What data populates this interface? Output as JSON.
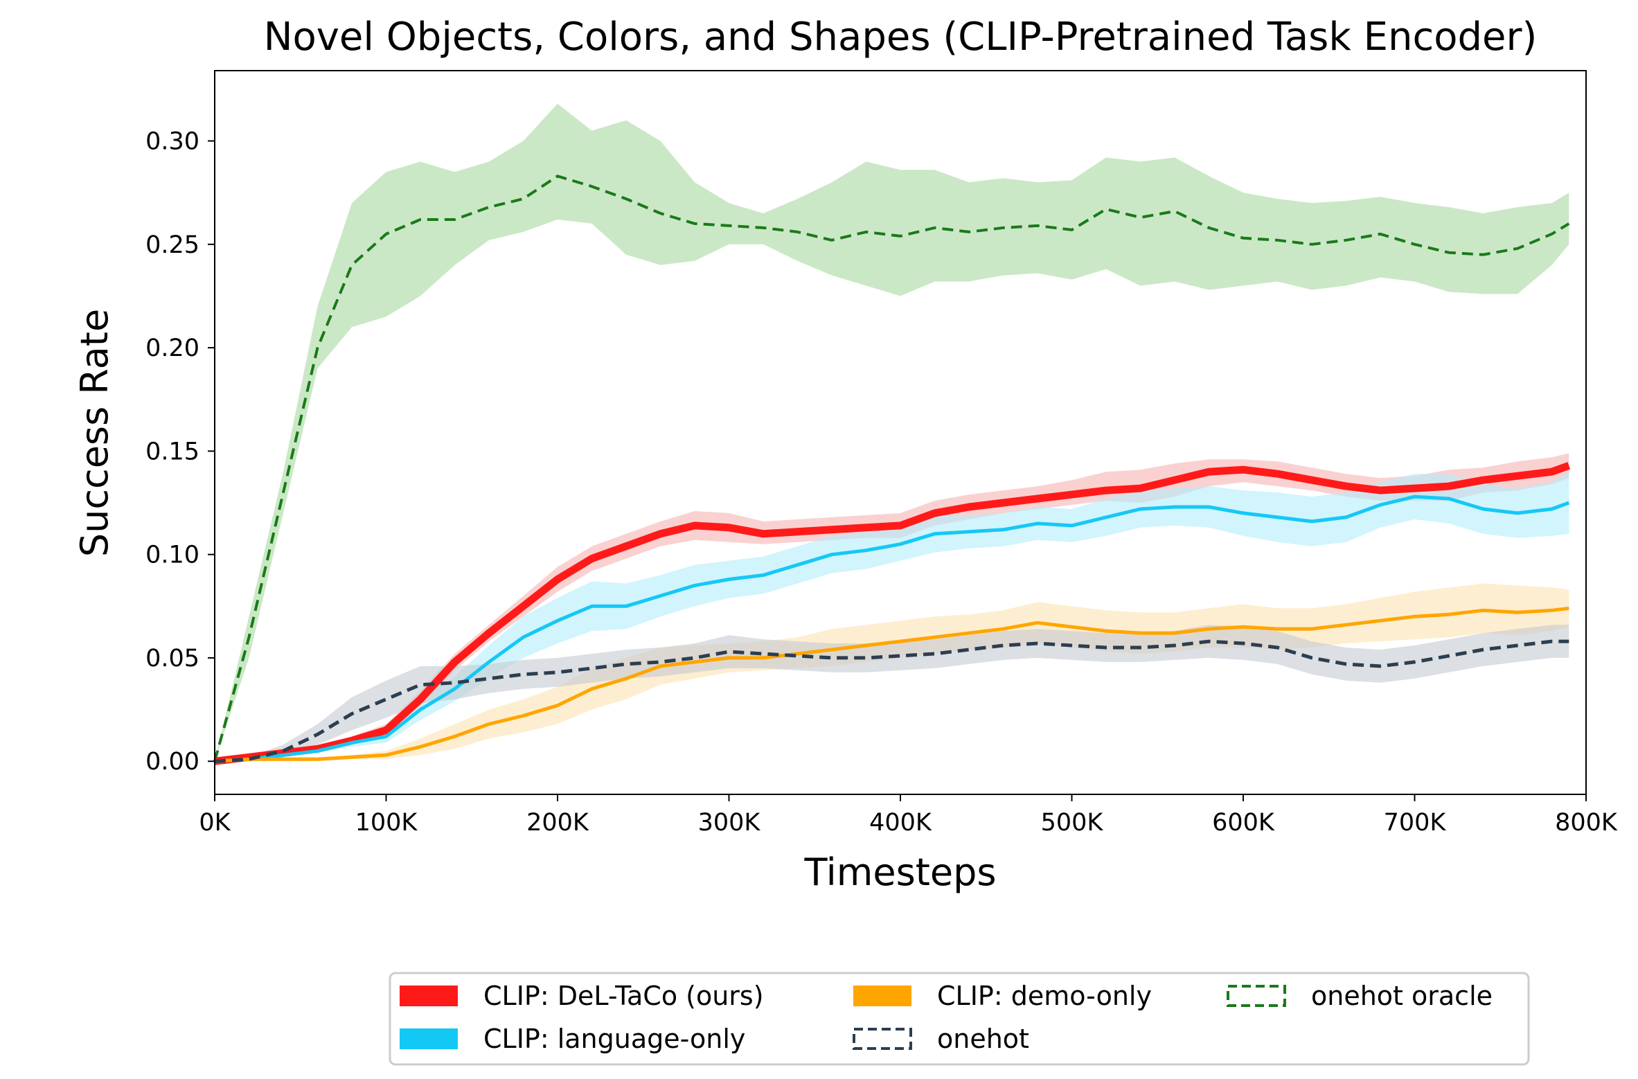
{
  "chart_data": {
    "type": "line",
    "title": "Novel Objects, Colors, and Shapes (CLIP-Pretrained Task Encoder)",
    "xlabel": "Timesteps",
    "ylabel": "Success Rate",
    "xlim": [
      0,
      800000
    ],
    "ylim": [
      -0.016,
      0.334
    ],
    "xticks": [
      0,
      100000,
      200000,
      300000,
      400000,
      500000,
      600000,
      700000,
      800000
    ],
    "xtick_labels": [
      "0K",
      "100K",
      "200K",
      "300K",
      "400K",
      "500K",
      "600K",
      "700K",
      "800K"
    ],
    "yticks": [
      0.0,
      0.05,
      0.1,
      0.15,
      0.2,
      0.25,
      0.3
    ],
    "ytick_labels": [
      "0.00",
      "0.05",
      "0.10",
      "0.15",
      "0.20",
      "0.25",
      "0.30"
    ],
    "grid": false,
    "legend_position": "bottom, below plot",
    "x": [
      0,
      20000,
      40000,
      60000,
      80000,
      100000,
      120000,
      140000,
      160000,
      180000,
      200000,
      220000,
      240000,
      260000,
      280000,
      300000,
      320000,
      340000,
      360000,
      380000,
      400000,
      420000,
      440000,
      460000,
      480000,
      500000,
      520000,
      540000,
      560000,
      580000,
      600000,
      620000,
      640000,
      660000,
      680000,
      700000,
      720000,
      740000,
      760000,
      780000,
      790000
    ],
    "series": [
      {
        "name": "onehot oracle",
        "color": "#1a7a1a",
        "band_color": "#a8d8a0",
        "line_style": "dashed",
        "line_width": 4,
        "values": [
          0.0,
          0.06,
          0.13,
          0.2,
          0.24,
          0.255,
          0.262,
          0.262,
          0.268,
          0.272,
          0.283,
          0.278,
          0.272,
          0.265,
          0.26,
          0.259,
          0.258,
          0.256,
          0.252,
          0.256,
          0.254,
          0.258,
          0.256,
          0.258,
          0.259,
          0.257,
          0.267,
          0.263,
          0.266,
          0.258,
          0.253,
          0.252,
          0.25,
          0.252,
          0.255,
          0.25,
          0.246,
          0.245,
          0.248,
          0.255,
          0.26
        ],
        "lower": [
          0.0,
          0.05,
          0.12,
          0.19,
          0.21,
          0.215,
          0.225,
          0.24,
          0.252,
          0.256,
          0.262,
          0.26,
          0.245,
          0.24,
          0.242,
          0.25,
          0.25,
          0.242,
          0.235,
          0.23,
          0.225,
          0.232,
          0.232,
          0.235,
          0.236,
          0.233,
          0.238,
          0.23,
          0.232,
          0.228,
          0.23,
          0.232,
          0.228,
          0.23,
          0.234,
          0.232,
          0.227,
          0.226,
          0.226,
          0.24,
          0.25
        ],
        "upper": [
          0.0,
          0.07,
          0.14,
          0.22,
          0.27,
          0.285,
          0.29,
          0.285,
          0.29,
          0.3,
          0.318,
          0.305,
          0.31,
          0.3,
          0.28,
          0.27,
          0.265,
          0.272,
          0.28,
          0.29,
          0.286,
          0.286,
          0.28,
          0.282,
          0.28,
          0.281,
          0.292,
          0.29,
          0.292,
          0.283,
          0.275,
          0.272,
          0.27,
          0.271,
          0.273,
          0.27,
          0.268,
          0.265,
          0.268,
          0.27,
          0.275
        ]
      },
      {
        "name": "CLIP: DeL-TaCo (ours)",
        "color": "#ff1a1a",
        "band_color": "#f7b3b3",
        "line_style": "solid",
        "line_width": 11,
        "values": [
          0.0,
          0.002,
          0.004,
          0.006,
          0.01,
          0.015,
          0.03,
          0.048,
          0.062,
          0.075,
          0.088,
          0.098,
          0.104,
          0.11,
          0.114,
          0.113,
          0.11,
          0.111,
          0.112,
          0.113,
          0.114,
          0.12,
          0.123,
          0.125,
          0.127,
          0.129,
          0.131,
          0.132,
          0.136,
          0.14,
          0.141,
          0.139,
          0.136,
          0.133,
          0.131,
          0.132,
          0.133,
          0.136,
          0.138,
          0.14,
          0.143
        ],
        "lower": [
          0.0,
          0.001,
          0.003,
          0.005,
          0.008,
          0.012,
          0.026,
          0.044,
          0.058,
          0.07,
          0.082,
          0.092,
          0.098,
          0.104,
          0.107,
          0.106,
          0.105,
          0.106,
          0.107,
          0.108,
          0.108,
          0.114,
          0.117,
          0.12,
          0.122,
          0.124,
          0.126,
          0.125,
          0.128,
          0.133,
          0.135,
          0.133,
          0.131,
          0.128,
          0.126,
          0.126,
          0.126,
          0.13,
          0.131,
          0.134,
          0.137
        ],
        "upper": [
          0.0,
          0.003,
          0.005,
          0.007,
          0.012,
          0.018,
          0.034,
          0.052,
          0.066,
          0.08,
          0.094,
          0.104,
          0.11,
          0.116,
          0.121,
          0.12,
          0.116,
          0.117,
          0.118,
          0.119,
          0.12,
          0.126,
          0.129,
          0.131,
          0.133,
          0.136,
          0.14,
          0.141,
          0.144,
          0.146,
          0.146,
          0.145,
          0.142,
          0.139,
          0.137,
          0.138,
          0.141,
          0.142,
          0.145,
          0.147,
          0.149
        ]
      },
      {
        "name": "CLIP: language-only",
        "color": "#14c8f5",
        "band_color": "#b3ecfb",
        "line_style": "solid",
        "line_width": 5,
        "values": [
          0.0,
          0.001,
          0.003,
          0.005,
          0.009,
          0.012,
          0.025,
          0.035,
          0.048,
          0.06,
          0.068,
          0.075,
          0.075,
          0.08,
          0.085,
          0.088,
          0.09,
          0.095,
          0.1,
          0.102,
          0.105,
          0.11,
          0.111,
          0.112,
          0.115,
          0.114,
          0.118,
          0.122,
          0.123,
          0.123,
          0.12,
          0.118,
          0.116,
          0.118,
          0.124,
          0.128,
          0.127,
          0.122,
          0.12,
          0.122,
          0.125
        ],
        "lower": [
          0.0,
          0.0,
          0.002,
          0.004,
          0.007,
          0.009,
          0.02,
          0.029,
          0.04,
          0.05,
          0.057,
          0.063,
          0.064,
          0.07,
          0.075,
          0.079,
          0.081,
          0.086,
          0.091,
          0.093,
          0.097,
          0.101,
          0.103,
          0.104,
          0.107,
          0.106,
          0.109,
          0.113,
          0.114,
          0.113,
          0.109,
          0.106,
          0.104,
          0.106,
          0.113,
          0.117,
          0.115,
          0.11,
          0.108,
          0.109,
          0.11
        ],
        "upper": [
          0.0,
          0.002,
          0.004,
          0.006,
          0.011,
          0.015,
          0.03,
          0.041,
          0.056,
          0.07,
          0.079,
          0.087,
          0.086,
          0.09,
          0.095,
          0.097,
          0.099,
          0.104,
          0.109,
          0.111,
          0.113,
          0.119,
          0.119,
          0.12,
          0.123,
          0.122,
          0.127,
          0.131,
          0.132,
          0.133,
          0.131,
          0.13,
          0.128,
          0.13,
          0.135,
          0.139,
          0.139,
          0.134,
          0.132,
          0.135,
          0.14
        ]
      },
      {
        "name": "CLIP: demo-only",
        "color": "#ffa500",
        "band_color": "#fde2b3",
        "line_style": "solid",
        "line_width": 5,
        "values": [
          0.0,
          0.001,
          0.001,
          0.001,
          0.002,
          0.003,
          0.007,
          0.012,
          0.018,
          0.022,
          0.027,
          0.035,
          0.04,
          0.046,
          0.048,
          0.05,
          0.05,
          0.052,
          0.054,
          0.056,
          0.058,
          0.06,
          0.062,
          0.064,
          0.067,
          0.065,
          0.063,
          0.062,
          0.062,
          0.064,
          0.065,
          0.064,
          0.064,
          0.066,
          0.068,
          0.07,
          0.071,
          0.073,
          0.072,
          0.073,
          0.074
        ],
        "lower": [
          0.0,
          0.0,
          0.0,
          0.0,
          0.001,
          0.001,
          0.003,
          0.006,
          0.011,
          0.014,
          0.018,
          0.025,
          0.03,
          0.037,
          0.04,
          0.043,
          0.044,
          0.045,
          0.046,
          0.048,
          0.05,
          0.052,
          0.054,
          0.055,
          0.057,
          0.055,
          0.053,
          0.052,
          0.053,
          0.055,
          0.055,
          0.054,
          0.055,
          0.057,
          0.058,
          0.059,
          0.06,
          0.062,
          0.061,
          0.063,
          0.065
        ],
        "upper": [
          0.0,
          0.002,
          0.002,
          0.002,
          0.003,
          0.005,
          0.011,
          0.018,
          0.025,
          0.03,
          0.036,
          0.045,
          0.05,
          0.055,
          0.056,
          0.057,
          0.058,
          0.06,
          0.064,
          0.066,
          0.068,
          0.07,
          0.071,
          0.073,
          0.077,
          0.075,
          0.073,
          0.072,
          0.072,
          0.074,
          0.076,
          0.074,
          0.074,
          0.076,
          0.079,
          0.082,
          0.084,
          0.086,
          0.085,
          0.084,
          0.083
        ]
      },
      {
        "name": "onehot",
        "color": "#2c3e50",
        "band_color": "#c4c9d0",
        "line_style": "dashed",
        "line_width": 5,
        "values": [
          0.0,
          0.001,
          0.005,
          0.013,
          0.023,
          0.03,
          0.037,
          0.038,
          0.04,
          0.042,
          0.043,
          0.045,
          0.047,
          0.048,
          0.05,
          0.053,
          0.052,
          0.051,
          0.05,
          0.05,
          0.051,
          0.052,
          0.054,
          0.056,
          0.057,
          0.056,
          0.055,
          0.055,
          0.056,
          0.058,
          0.057,
          0.055,
          0.05,
          0.047,
          0.046,
          0.048,
          0.051,
          0.054,
          0.056,
          0.058,
          0.058
        ],
        "lower": [
          0.0,
          0.0,
          0.002,
          0.008,
          0.015,
          0.021,
          0.028,
          0.03,
          0.033,
          0.035,
          0.036,
          0.038,
          0.04,
          0.041,
          0.043,
          0.045,
          0.045,
          0.044,
          0.043,
          0.043,
          0.044,
          0.045,
          0.047,
          0.049,
          0.05,
          0.049,
          0.048,
          0.048,
          0.049,
          0.05,
          0.049,
          0.047,
          0.042,
          0.039,
          0.038,
          0.04,
          0.043,
          0.046,
          0.048,
          0.05,
          0.05
        ],
        "upper": [
          0.0,
          0.002,
          0.008,
          0.018,
          0.031,
          0.039,
          0.046,
          0.046,
          0.047,
          0.049,
          0.05,
          0.052,
          0.054,
          0.055,
          0.057,
          0.061,
          0.059,
          0.058,
          0.057,
          0.057,
          0.058,
          0.059,
          0.061,
          0.063,
          0.064,
          0.063,
          0.062,
          0.062,
          0.063,
          0.066,
          0.065,
          0.063,
          0.058,
          0.055,
          0.054,
          0.056,
          0.059,
          0.062,
          0.064,
          0.066,
          0.066
        ]
      }
    ],
    "legend": [
      {
        "label": "CLIP: DeL-TaCo (ours)",
        "color": "#ff1a1a",
        "style": "solid"
      },
      {
        "label": "CLIP: language-only",
        "color": "#14c8f5",
        "style": "solid"
      },
      {
        "label": "CLIP: demo-only",
        "color": "#ffa500",
        "style": "solid"
      },
      {
        "label": "onehot",
        "color": "#2c3e50",
        "style": "dashed"
      },
      {
        "label": "onehot oracle",
        "color": "#1a7a1a",
        "style": "dashed"
      }
    ]
  }
}
